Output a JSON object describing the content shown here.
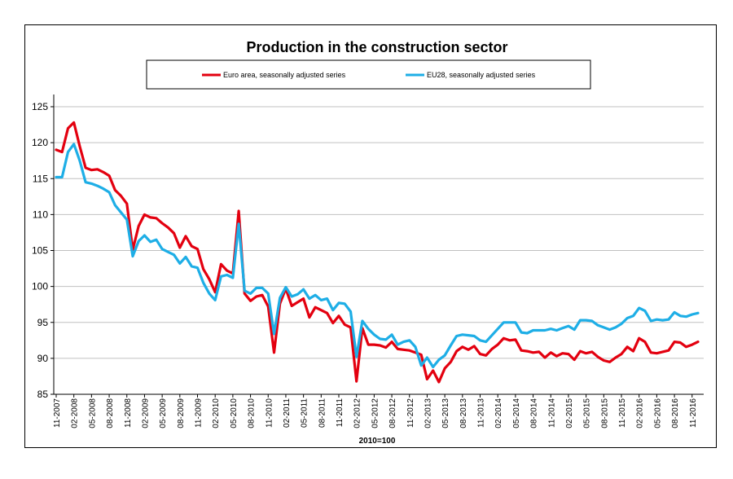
{
  "chart_data": {
    "type": "line",
    "title": "Production in the construction sector",
    "note": "2010=100",
    "ylim": [
      85,
      125
    ],
    "y_ticks": [
      85,
      90,
      95,
      100,
      105,
      110,
      115,
      120,
      125
    ],
    "x_start": "2007-11",
    "x_end": "2016-11",
    "x_tick_labels": [
      "11-2007",
      "02-2008",
      "05-2008",
      "08-2008",
      "11-2008",
      "02-2009",
      "05-2009",
      "08-2009",
      "11-2009",
      "02-2010",
      "05-2010",
      "08-2010",
      "11-2010",
      "02-2011",
      "05-2011",
      "08-2011",
      "11-2011",
      "02-2012",
      "05-2012",
      "08-2012",
      "11-2012",
      "02-2013",
      "05-2013",
      "08-2013",
      "11-2013",
      "02-2014",
      "05-2014",
      "08-2014",
      "11-2014",
      "02-2015",
      "05-2015",
      "08-2015",
      "11-2015",
      "02-2016",
      "05-2016",
      "08-2016",
      "11-2016"
    ],
    "grid": "horizontal",
    "legend_position": "top",
    "series": [
      {
        "name": "Euro area, seasonally adjusted series",
        "color": "#e3000f",
        "values": [
          119.0,
          118.7,
          122.0,
          122.8,
          119.5,
          116.5,
          116.2,
          116.3,
          115.9,
          115.4,
          113.4,
          112.6,
          111.5,
          105.1,
          108.4,
          110.0,
          109.6,
          109.5,
          108.8,
          108.2,
          107.4,
          105.4,
          107.0,
          105.6,
          105.2,
          102.4,
          101.0,
          99.2,
          103.1,
          102.2,
          101.8,
          110.5,
          99.0,
          98.0,
          98.6,
          98.8,
          97.2,
          90.8,
          97.6,
          99.7,
          97.3,
          97.8,
          98.3,
          95.7,
          97.1,
          96.7,
          96.3,
          94.9,
          95.9,
          94.7,
          94.3,
          86.8,
          94.2,
          91.9,
          91.9,
          91.8,
          91.5,
          92.3,
          91.3,
          91.2,
          91.1,
          90.8,
          90.5,
          87.1,
          88.3,
          86.7,
          88.6,
          89.5,
          91.0,
          91.6,
          91.2,
          91.7,
          90.6,
          90.4,
          91.3,
          91.9,
          92.8,
          92.5,
          92.6,
          91.1,
          91.0,
          90.8,
          90.9,
          90.1,
          90.8,
          90.3,
          90.7,
          90.6,
          89.8,
          91.0,
          90.7,
          90.9,
          90.2,
          89.7,
          89.5,
          90.1,
          90.6,
          91.6,
          91.0,
          92.8,
          92.3,
          90.8,
          90.7,
          90.9,
          91.1,
          92.3,
          92.2,
          91.6,
          91.9,
          92.3
        ]
      },
      {
        "name": "EU28, seasonally adjusted series",
        "color": "#1eaee6",
        "values": [
          115.2,
          115.2,
          118.7,
          119.8,
          117.5,
          114.5,
          114.3,
          114.0,
          113.6,
          113.1,
          111.3,
          110.3,
          109.3,
          104.2,
          106.3,
          107.1,
          106.2,
          106.5,
          105.2,
          104.8,
          104.4,
          103.2,
          104.1,
          102.8,
          102.6,
          100.5,
          99.0,
          98.1,
          101.4,
          101.6,
          101.2,
          108.7,
          99.4,
          99.0,
          99.8,
          99.8,
          99.0,
          93.4,
          98.4,
          99.9,
          98.6,
          98.9,
          99.6,
          98.3,
          98.8,
          98.1,
          98.3,
          96.7,
          97.7,
          97.6,
          96.5,
          90.2,
          95.2,
          94.1,
          93.3,
          92.7,
          92.6,
          93.3,
          91.9,
          92.3,
          92.5,
          91.6,
          89.0,
          90.1,
          88.8,
          89.8,
          90.4,
          91.8,
          93.1,
          93.3,
          93.2,
          93.1,
          92.5,
          92.3,
          93.2,
          94.1,
          95.0,
          95.0,
          95.0,
          93.6,
          93.5,
          93.9,
          93.9,
          93.9,
          94.1,
          93.9,
          94.2,
          94.5,
          94.0,
          95.3,
          95.3,
          95.2,
          94.6,
          94.3,
          94.0,
          94.3,
          94.8,
          95.6,
          95.9,
          97.0,
          96.6,
          95.2,
          95.4,
          95.3,
          95.4,
          96.4,
          95.9,
          95.8,
          96.1,
          96.3
        ]
      }
    ]
  }
}
